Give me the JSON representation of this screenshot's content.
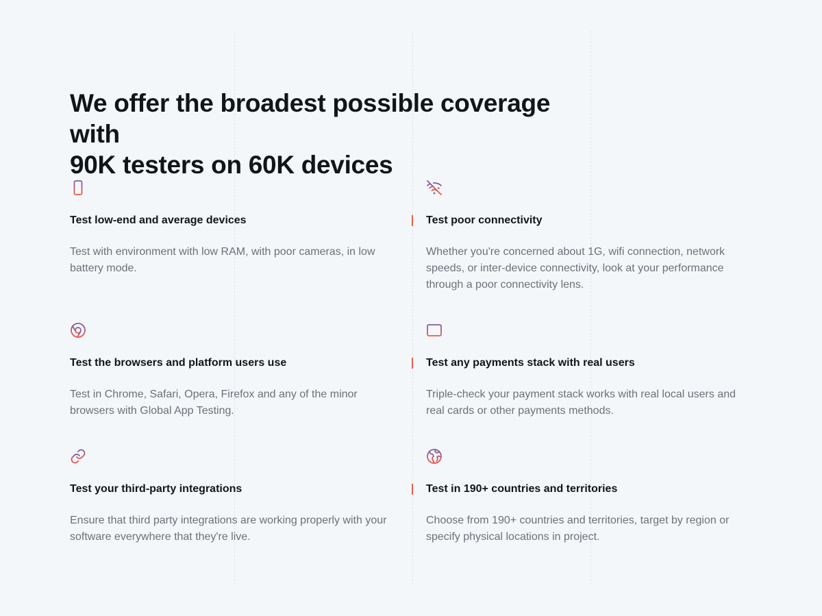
{
  "heading": {
    "line1": "We offer the broadest possible coverage with",
    "line2": "90K testers on 60K devices"
  },
  "colors": {
    "gradient_start": "#7b5ea7",
    "gradient_end": "#f0584a",
    "accent": "#f0584a"
  },
  "features": [
    {
      "icon": "smartphone-icon",
      "title": "Test low-end and average devices",
      "description": "Test with environment with low RAM, with poor cameras, in low battery mode."
    },
    {
      "icon": "wifi-off-icon",
      "title": "Test poor connectivity",
      "description": "Whether you're concerned about 1G, wifi connection, network speeds, or inter-device connectivity, look at your performance through a poor connectivity lens."
    },
    {
      "icon": "chrome-icon",
      "title": "Test the browsers and platform users use",
      "description": "Test in Chrome, Safari, Opera, Firefox and any of the minor browsers with Global App Testing."
    },
    {
      "icon": "credit-card-icon",
      "title": "Test any payments stack with real users",
      "description": "Triple-check your payment stack works with real local users and real cards or other payments methods."
    },
    {
      "icon": "link-icon",
      "title": "Test your third-party integrations",
      "description": "Ensure that third party integrations are working properly with your software everywhere that they're live."
    },
    {
      "icon": "globe-icon",
      "title": "Test in 190+ countries and territories",
      "description": "Choose from 190+ countries and territories, target by region or specify physical locations in project."
    }
  ]
}
